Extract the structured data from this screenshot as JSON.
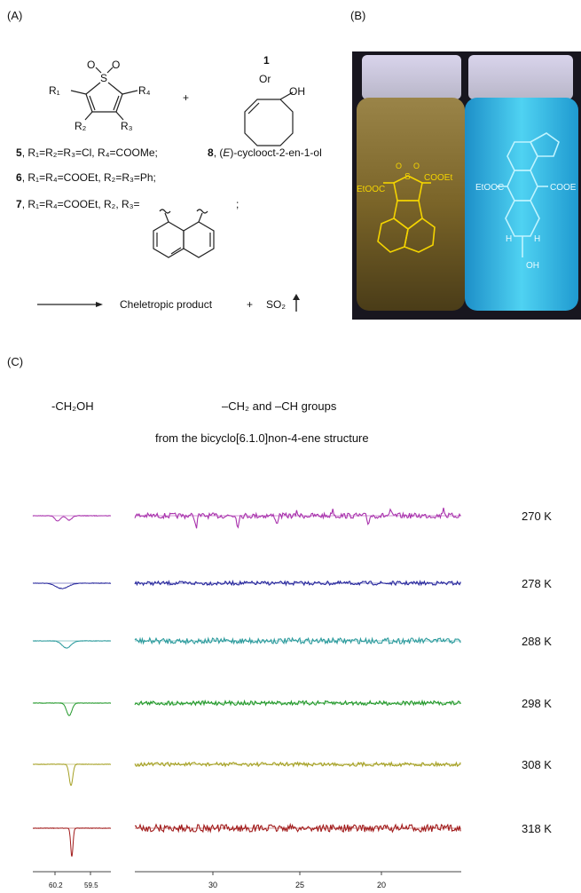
{
  "panel_a": {
    "label": "(A)",
    "sulfone": {
      "s": "S",
      "o_left": "O",
      "o_right": "O",
      "r1": "R₁",
      "r4": "R₄",
      "r2": "R₂",
      "r3": "R₃"
    },
    "plus": "+",
    "alternative": {
      "number": "1",
      "or": "Or",
      "oh": "OH"
    },
    "compounds": [
      {
        "number": "5",
        "text": ", R₁=R₂=R₃=Cl, R₄=COOMe;"
      },
      {
        "number": "6",
        "text": ", R₁=R₄=COOEt, R₂=R₃=Ph;"
      },
      {
        "number": "7",
        "text": ", R₁=R₄=COOEt, R₂, R₃=",
        "end": ";"
      }
    ],
    "compound_8": {
      "number": "8",
      "prefix": ", (",
      "italic": "E",
      "suffix": ")-cyclooct-2-en-1-ol"
    },
    "reaction": {
      "product": "Cheletropic product",
      "plus": "+",
      "gas": "SO₂"
    }
  },
  "panel_b": {
    "label": "(B)",
    "left_vial": {
      "s": "S",
      "o1": "O",
      "o2": "O",
      "ester_left": "EtOOC",
      "ester_right": "COOEt"
    },
    "right_vial": {
      "ester_left": "EtOOC",
      "ester_right": "COOE",
      "h_left": "H",
      "h_right": "H",
      "oh": "OH"
    }
  },
  "panel_c": {
    "label": "(C)",
    "left_heading": "-CH₂OH",
    "right_heading": "–CH₂ and –CH groups",
    "right_subheading": "from the  bicyclo[6.1.0]non-4-ene structure",
    "spectra": [
      {
        "temperature": "270 K",
        "color": "#a830ac"
      },
      {
        "temperature": "278 K",
        "color": "#26269c"
      },
      {
        "temperature": "288 K",
        "color": "#2a9a9c"
      },
      {
        "temperature": "298 K",
        "color": "#23992b"
      },
      {
        "temperature": "308 K",
        "color": "#a5a023"
      },
      {
        "temperature": "318 K",
        "color": "#a11a1a"
      }
    ],
    "left_axis_ticks": [
      "60.2",
      "59.5"
    ],
    "right_axis_ticks": [
      "30",
      "25",
      "20"
    ]
  }
}
